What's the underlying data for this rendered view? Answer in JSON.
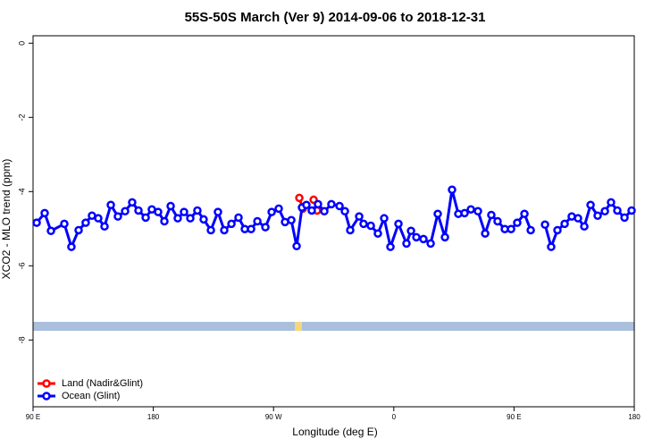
{
  "chart_data": {
    "type": "line",
    "title": "55S-50S March (Ver 9)   2014-09-06 to 2018-12-31",
    "x_label": "Longitude (deg E)",
    "y_label": "XCO2 - MLO trend (ppm)",
    "xlim": [
      90,
      540
    ],
    "xticks": [
      {
        "value": 90,
        "label": "90 E"
      },
      {
        "value": 180,
        "label": "180"
      },
      {
        "value": 270,
        "label": "90 W"
      },
      {
        "value": 360,
        "label": "0"
      },
      {
        "value": 450,
        "label": "90 E"
      },
      {
        "value": 540,
        "label": "180"
      }
    ],
    "ylim": [
      -9.8,
      0.2
    ],
    "yticks": [
      0,
      -2,
      -4,
      -6,
      -8
    ],
    "legend": "bottom-left",
    "series": [
      {
        "name": "Land (Nadir&Glint)",
        "color": "#ff0000",
        "x": [
          289.3,
          291.9,
          296,
          300.0,
          302.6
        ],
        "values": [
          -4.17,
          -4.46,
          null,
          -4.22,
          -4.51
        ]
      },
      {
        "name": "Ocean (Glint)",
        "color": "#0000ff",
        "x": [
          92.7,
          98.7,
          103.4,
          113.4,
          118.7,
          124.1,
          129.4,
          134.1,
          138.8,
          143.5,
          148.2,
          153.5,
          158.9,
          164.2,
          168.9,
          174.3,
          178.9,
          183.6,
          188.3,
          193.0,
          198.3,
          203.0,
          207.7,
          213.0,
          217.7,
          223.1,
          228.4,
          233.1,
          238.5,
          243.8,
          248.5,
          253.2,
          257.9,
          263.9,
          268.6,
          273.9,
          278.6,
          283.3,
          287.3,
          291.3,
          294.6,
          298.6,
          303.3,
          308.0,
          313.3,
          319.4,
          323.4,
          327.4,
          334.1,
          337.4,
          342.8,
          348.1,
          352.8,
          357.5,
          363.5,
          369.5,
          372.9,
          376.9,
          382.2,
          387.6,
          392.9,
          398.3,
          403.6,
          408.3,
          413.0,
          417.7,
          423.0,
          428.4,
          433.0,
          437.7,
          443.1,
          447.8,
          452.4,
          457.8,
          462.5,
          468,
          473.2,
          477.8,
          482.5,
          487.9,
          493.2,
          497.9,
          502.6,
          507.3,
          512.6,
          518.0,
          522.6,
          527.3,
          532.7,
          538.0
        ],
        "values": [
          -4.84,
          -4.58,
          -5.06,
          -4.87,
          -5.49,
          -5.04,
          -4.84,
          -4.65,
          -4.72,
          -4.94,
          -4.36,
          -4.67,
          -4.53,
          -4.29,
          -4.51,
          -4.7,
          -4.48,
          -4.55,
          -4.8,
          -4.39,
          -4.72,
          -4.55,
          -4.72,
          -4.51,
          -4.75,
          -5.04,
          -4.55,
          -5.04,
          -4.87,
          -4.7,
          -5.01,
          -5.01,
          -4.8,
          -4.96,
          -4.55,
          -4.46,
          -4.82,
          -4.77,
          -5.47,
          -4.43,
          -4.36,
          -4.51,
          -4.34,
          -4.53,
          -4.34,
          -4.39,
          -4.53,
          -5.04,
          -4.67,
          -4.87,
          -4.92,
          -5.13,
          -4.72,
          -5.49,
          -4.87,
          -5.4,
          -5.06,
          -5.23,
          -5.28,
          -5.4,
          -4.6,
          -5.23,
          -3.95,
          -4.6,
          -4.58,
          -4.48,
          -4.53,
          -5.13,
          -4.63,
          -4.8,
          -5.01,
          -5.01,
          -4.84,
          -4.6,
          -5.04,
          null,
          -4.89,
          -5.49,
          -5.04,
          -4.87,
          -4.67,
          -4.72,
          -4.94,
          -4.36,
          -4.65,
          -4.53,
          -4.29,
          -4.51,
          -4.7,
          -4.51
        ]
      }
    ]
  }
}
